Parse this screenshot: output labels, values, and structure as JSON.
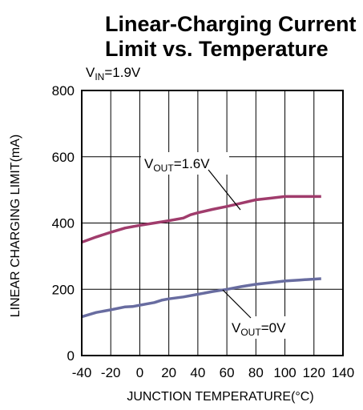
{
  "chart_data": {
    "type": "line",
    "title_line1": "Linear-Charging Current",
    "title_line2": "Limit vs. Temperature",
    "condition": {
      "main": "V",
      "sub": "IN",
      "rest": "=1.9V"
    },
    "xlabel": "JUNCTION TEMPERATURE(°C)",
    "ylabel": "LINEAR CHARGING LIMIT(mA)",
    "xlim": [
      -40,
      140
    ],
    "ylim": [
      0,
      800
    ],
    "x_ticks": [
      -40,
      -20,
      0,
      20,
      40,
      60,
      80,
      100,
      120,
      140
    ],
    "x_tick_labels": [
      "-40",
      "-20",
      "0",
      "20",
      "40",
      "60",
      "80",
      "100",
      "120",
      "140"
    ],
    "y_ticks": [
      0,
      200,
      400,
      600,
      800
    ],
    "y_tick_labels": [
      "0",
      "200",
      "400",
      "600",
      "800"
    ],
    "grid": true,
    "series": [
      {
        "name": "VOUT=1.6V",
        "label": {
          "main": "V",
          "sub": "OUT",
          "rest": "=1.6V"
        },
        "color": "#a03c6c",
        "x": [
          -40,
          -30,
          -20,
          -10,
          0,
          10,
          20,
          30,
          35,
          40,
          50,
          60,
          70,
          80,
          90,
          100,
          110,
          125
        ],
        "y": [
          342,
          358,
          372,
          385,
          393,
          400,
          407,
          415,
          425,
          431,
          441,
          450,
          460,
          470,
          475,
          480,
          480,
          480
        ]
      },
      {
        "name": "VOUT=0V",
        "label": {
          "main": "V",
          "sub": "OUT",
          "rest": "=0V"
        },
        "color": "#686ca0",
        "x": [
          -40,
          -30,
          -20,
          -10,
          -5,
          0,
          10,
          15,
          20,
          30,
          40,
          50,
          60,
          70,
          80,
          90,
          100,
          110,
          125
        ],
        "y": [
          117,
          130,
          138,
          147,
          148,
          152,
          160,
          167,
          171,
          177,
          185,
          193,
          200,
          208,
          215,
          220,
          225,
          228,
          232
        ]
      }
    ]
  }
}
